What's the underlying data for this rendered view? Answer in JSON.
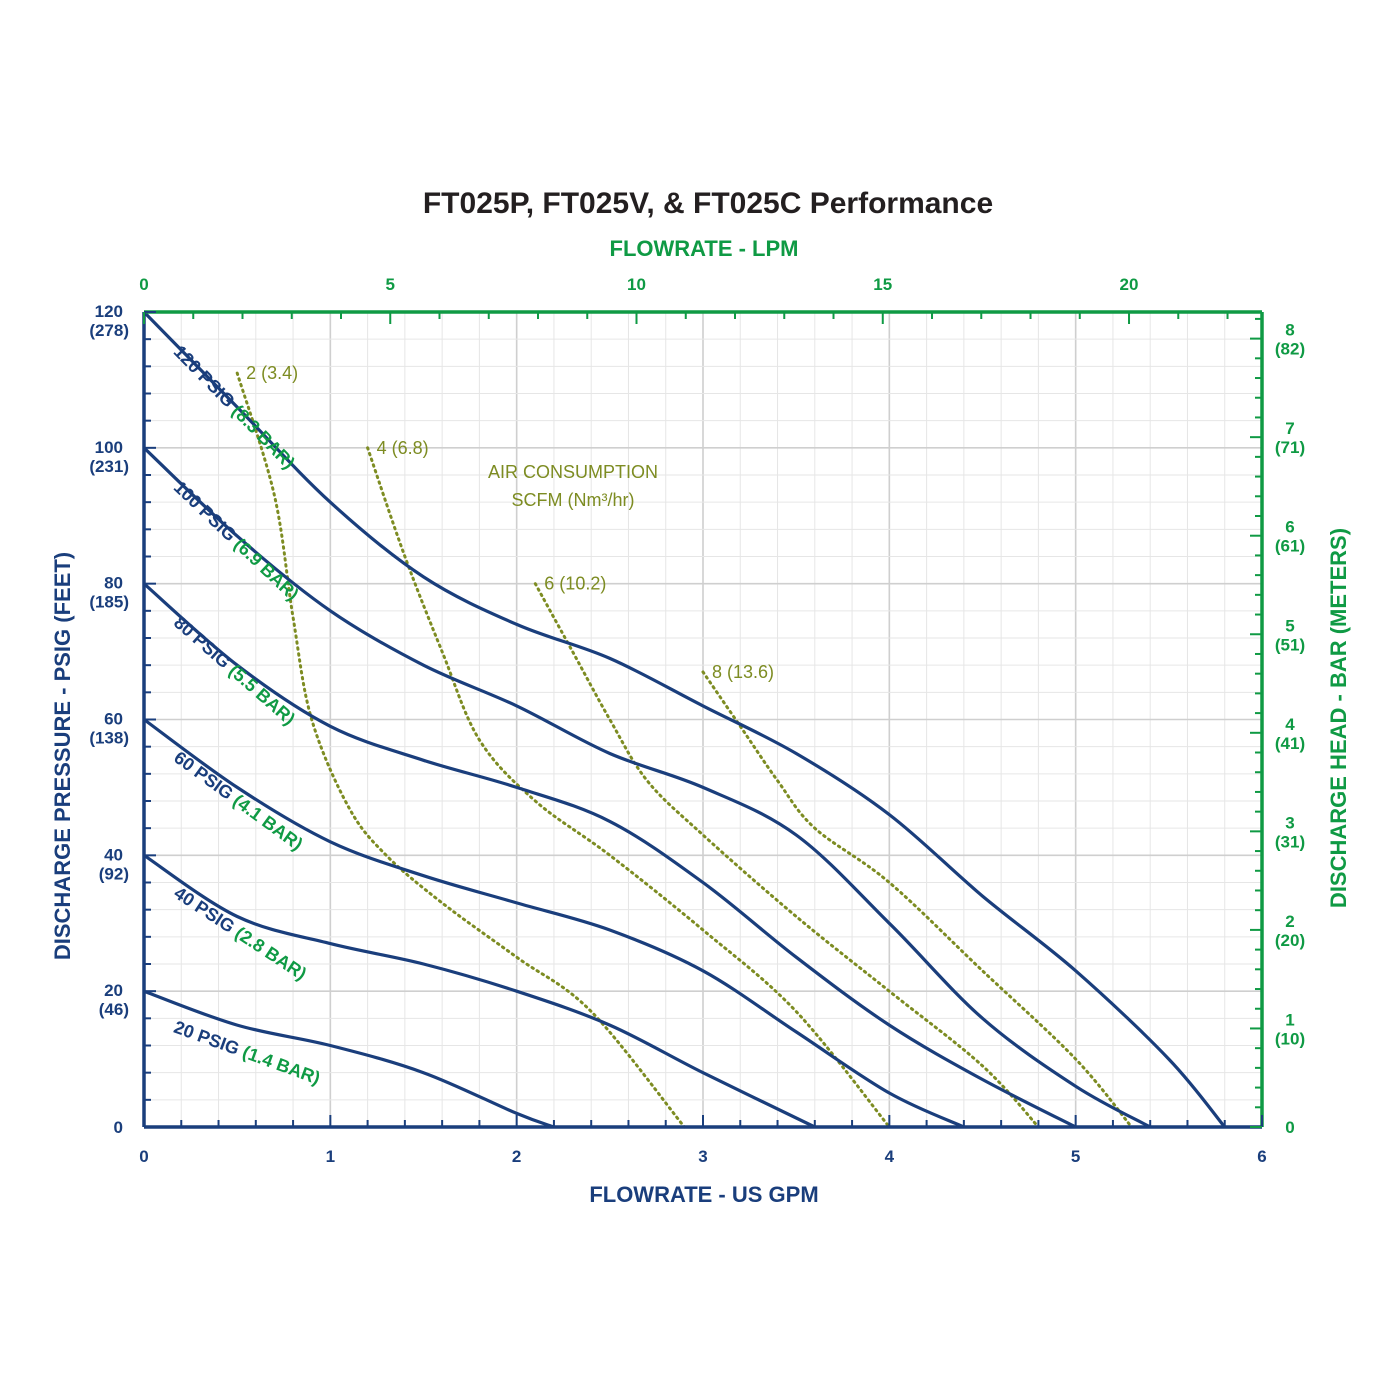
{
  "colors": {
    "blue": "#1a3e7c",
    "green": "#0f9a44",
    "olive": "#7d8c22",
    "grid_major": "#cfcfcf",
    "grid_minor": "#e6e6e6",
    "title": "#231f20"
  },
  "chart_data": {
    "type": "line",
    "title": "FT025P, FT025V, & FT025C Performance",
    "xlabel": "FLOWRATE - US GPM",
    "x2label": "FLOWRATE - LPM",
    "ylabel": "DISCHARGE PRESSURE - PSIG (FEET)",
    "y2label": "DISCHARGE HEAD - BAR (METERS)",
    "xlim": [
      0,
      6
    ],
    "ylim": [
      0,
      120
    ],
    "x2lim": [
      0,
      22.7
    ],
    "y2lim": [
      0,
      8.27
    ],
    "grid": true,
    "x_ticks": [
      {
        "value": 0,
        "label": "0"
      },
      {
        "value": 1,
        "label": "1"
      },
      {
        "value": 2,
        "label": "2"
      },
      {
        "value": 3,
        "label": "3"
      },
      {
        "value": 4,
        "label": "4"
      },
      {
        "value": 5,
        "label": "5"
      },
      {
        "value": 6,
        "label": "6"
      }
    ],
    "x2_ticks": [
      {
        "value": 0,
        "label": "0"
      },
      {
        "value": 5,
        "label": "5"
      },
      {
        "value": 10,
        "label": "10"
      },
      {
        "value": 15,
        "label": "15"
      },
      {
        "value": 20,
        "label": "20"
      }
    ],
    "y_ticks": [
      {
        "value": 0,
        "label": "0",
        "sub": ""
      },
      {
        "value": 20,
        "label": "20",
        "sub": "(46)"
      },
      {
        "value": 40,
        "label": "40",
        "sub": "(92)"
      },
      {
        "value": 60,
        "label": "60",
        "sub": "(138)"
      },
      {
        "value": 80,
        "label": "80",
        "sub": "(185)"
      },
      {
        "value": 100,
        "label": "100",
        "sub": "(231)"
      },
      {
        "value": 120,
        "label": "120",
        "sub": "(278)"
      }
    ],
    "y2_ticks": [
      {
        "value": 0,
        "label": "0",
        "sub": ""
      },
      {
        "value": 1,
        "label": "1",
        "sub": "(10)"
      },
      {
        "value": 2,
        "label": "2",
        "sub": "(20)"
      },
      {
        "value": 3,
        "label": "3",
        "sub": "(31)"
      },
      {
        "value": 4,
        "label": "4",
        "sub": "(41)"
      },
      {
        "value": 5,
        "label": "5",
        "sub": "(51)"
      },
      {
        "value": 6,
        "label": "6",
        "sub": "(61)"
      },
      {
        "value": 7,
        "label": "7",
        "sub": "(71)"
      },
      {
        "value": 8,
        "label": "8",
        "sub": "(82)"
      }
    ],
    "series": [
      {
        "name": "20 PSIG",
        "bar": "(1.4 BAR)",
        "label_at": [
          0.1,
          14
        ],
        "points": [
          [
            0,
            20
          ],
          [
            0.5,
            15
          ],
          [
            1,
            12
          ],
          [
            1.5,
            8
          ],
          [
            2,
            2
          ],
          [
            2.2,
            0
          ]
        ]
      },
      {
        "name": "40 PSIG",
        "bar": "(2.8 BAR)",
        "label_at": [
          0.1,
          34
        ],
        "points": [
          [
            0,
            40
          ],
          [
            0.5,
            31
          ],
          [
            1,
            27
          ],
          [
            1.5,
            24
          ],
          [
            2,
            20
          ],
          [
            2.5,
            15
          ],
          [
            3,
            8
          ],
          [
            3.6,
            0
          ]
        ]
      },
      {
        "name": "60 PSIG",
        "bar": "(4.1 BAR)",
        "label_at": [
          0.1,
          54
        ],
        "points": [
          [
            0,
            60
          ],
          [
            0.5,
            50
          ],
          [
            1,
            42
          ],
          [
            1.5,
            37
          ],
          [
            2,
            33
          ],
          [
            2.5,
            29
          ],
          [
            3,
            23
          ],
          [
            3.5,
            14
          ],
          [
            4,
            5
          ],
          [
            4.4,
            0
          ]
        ]
      },
      {
        "name": "80 PSIG",
        "bar": "(5.5 BAR)",
        "label_at": [
          0.1,
          74
        ],
        "points": [
          [
            0,
            80
          ],
          [
            0.5,
            68
          ],
          [
            1,
            59
          ],
          [
            1.5,
            54
          ],
          [
            2,
            50
          ],
          [
            2.5,
            45
          ],
          [
            3,
            36
          ],
          [
            3.5,
            25
          ],
          [
            4,
            15
          ],
          [
            4.5,
            7
          ],
          [
            5,
            0
          ]
        ]
      },
      {
        "name": "100 PSIG",
        "bar": "(6.9 BAR)",
        "label_at": [
          0.1,
          94
        ],
        "points": [
          [
            0,
            100
          ],
          [
            0.5,
            87
          ],
          [
            1,
            76
          ],
          [
            1.5,
            68
          ],
          [
            2,
            62
          ],
          [
            2.5,
            55
          ],
          [
            3,
            50
          ],
          [
            3.5,
            43
          ],
          [
            4,
            30
          ],
          [
            4.5,
            16
          ],
          [
            5,
            6
          ],
          [
            5.4,
            0
          ]
        ]
      },
      {
        "name": "120 PSIG",
        "bar": "(8.3 BAR)",
        "label_at": [
          0.1,
          114
        ],
        "points": [
          [
            0,
            120
          ],
          [
            0.5,
            106
          ],
          [
            1,
            92
          ],
          [
            1.5,
            81
          ],
          [
            2,
            74
          ],
          [
            2.5,
            69
          ],
          [
            3,
            62
          ],
          [
            3.5,
            55
          ],
          [
            4,
            46
          ],
          [
            4.5,
            34
          ],
          [
            5,
            23
          ],
          [
            5.5,
            10
          ],
          [
            5.8,
            0
          ]
        ]
      }
    ],
    "air_title": [
      "AIR CONSUMPTION",
      "SCFM (Nm³/hr)"
    ],
    "air_consumption": [
      {
        "label": "2 (3.4)",
        "points": [
          [
            0.5,
            111
          ],
          [
            0.7,
            93
          ],
          [
            0.8,
            75
          ],
          [
            0.9,
            60
          ],
          [
            1.1,
            47
          ],
          [
            1.3,
            40
          ],
          [
            1.6,
            33
          ],
          [
            2,
            25
          ],
          [
            2.4,
            17
          ],
          [
            2.9,
            0
          ]
        ]
      },
      {
        "label": "4 (6.8)",
        "points": [
          [
            1.2,
            100
          ],
          [
            1.4,
            84
          ],
          [
            1.6,
            70
          ],
          [
            1.8,
            57
          ],
          [
            2.1,
            48
          ],
          [
            2.5,
            40
          ],
          [
            3,
            29
          ],
          [
            3.5,
            17
          ],
          [
            4,
            0
          ]
        ]
      },
      {
        "label": "6 (10.2)",
        "points": [
          [
            2.1,
            80
          ],
          [
            2.3,
            70
          ],
          [
            2.5,
            60
          ],
          [
            2.7,
            51
          ],
          [
            3,
            43
          ],
          [
            3.5,
            31
          ],
          [
            4,
            20
          ],
          [
            4.5,
            9
          ],
          [
            4.8,
            0
          ]
        ]
      },
      {
        "label": "8 (13.6)",
        "points": [
          [
            3,
            67
          ],
          [
            3.2,
            59
          ],
          [
            3.4,
            51
          ],
          [
            3.6,
            44
          ],
          [
            4,
            36
          ],
          [
            4.5,
            23
          ],
          [
            5,
            10
          ],
          [
            5.3,
            0
          ]
        ]
      }
    ]
  }
}
